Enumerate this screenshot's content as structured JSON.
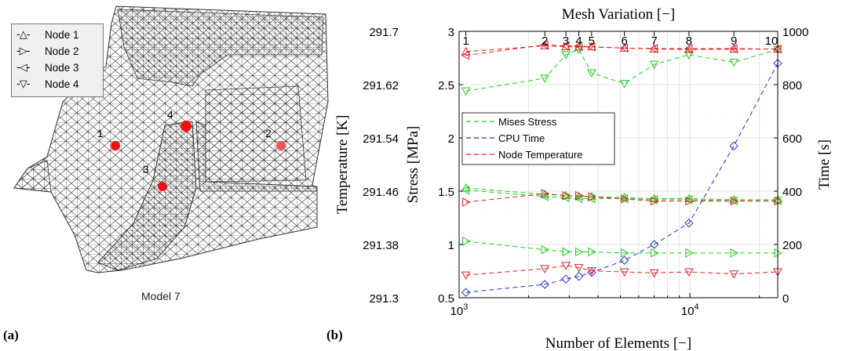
{
  "panel_a": {
    "label": "(a)",
    "caption": "Model 7",
    "legend": [
      {
        "marker": "-△-",
        "label": "Node 1"
      },
      {
        "marker": "-▷-",
        "label": "Node 2"
      },
      {
        "marker": "-◁-",
        "label": "Node 3"
      },
      {
        "marker": "-▽-",
        "label": "Node 4"
      }
    ],
    "node_labels": [
      "1",
      "2",
      "3",
      "4"
    ]
  },
  "panel_b": {
    "label": "(b)"
  },
  "chart_data": {
    "type": "line",
    "title": "Mesh Variation [−]",
    "xlabel": "Number of Elements [−]",
    "xscale": "log",
    "xlim": [
      1000,
      24000
    ],
    "x_tick_labels": [
      "10^3",
      "10^4"
    ],
    "top_tick_labels": [
      "1",
      "2",
      "3",
      "4",
      "5",
      "6",
      "7",
      "8",
      "9",
      "10"
    ],
    "ylabel_stress": "Stress [MPa]",
    "ylim_stress": [
      0.5,
      3
    ],
    "stress_ticks": [
      "0.5",
      "1",
      "1.5",
      "2",
      "2.5",
      "3"
    ],
    "ylabel_temperature": "Temperature [K]",
    "ylim_temperature": [
      291.3,
      291.7
    ],
    "temperature_ticks": [
      "291.3",
      "291.38",
      "291.46",
      "291.54",
      "291.62",
      "291.7"
    ],
    "ylabel_time": "Time [s]",
    "ylim_time": [
      0,
      1000
    ],
    "time_ticks": [
      "0",
      "200",
      "400",
      "600",
      "800",
      "1000"
    ],
    "grid": true,
    "legend_position": "middle-left",
    "legend": [
      {
        "label": "Mises Stress",
        "color": "#22cc22"
      },
      {
        "label": "CPU Time",
        "color": "#2233cc"
      },
      {
        "label": "Node Temperature",
        "color": "#dd2222"
      }
    ],
    "x": [
      1070,
      2350,
      2900,
      3300,
      3750,
      5200,
      7000,
      9900,
      15500,
      24000
    ],
    "series": [
      {
        "name": "Mises Stress",
        "color": "#22cc22",
        "axis": "stress",
        "marker": "triangle-up",
        "values": [
          1.53,
          1.47,
          1.46,
          1.45,
          1.45,
          1.44,
          1.43,
          1.43,
          1.42,
          1.42
        ]
      },
      {
        "name": "Mises Stress",
        "color": "#22cc22",
        "axis": "stress",
        "marker": "triangle-right",
        "values": [
          1.03,
          0.95,
          0.93,
          0.93,
          0.93,
          0.92,
          0.92,
          0.92,
          0.92,
          0.92
        ]
      },
      {
        "name": "Mises Stress",
        "color": "#22cc22",
        "axis": "stress",
        "marker": "triangle-left",
        "values": [
          1.51,
          1.45,
          1.44,
          1.43,
          1.43,
          1.43,
          1.42,
          1.42,
          1.41,
          1.41
        ]
      },
      {
        "name": "Mises Stress",
        "color": "#22cc22",
        "axis": "stress",
        "marker": "triangle-down",
        "values": [
          2.44,
          2.56,
          2.78,
          2.83,
          2.61,
          2.51,
          2.69,
          2.78,
          2.71,
          2.83
        ]
      },
      {
        "name": "CPU Time",
        "color": "#2233cc",
        "axis": "time",
        "marker": "diamond",
        "values": [
          20,
          50,
          70,
          80,
          95,
          140,
          200,
          280,
          570,
          880
        ]
      },
      {
        "name": "Node Temperature",
        "color": "#dd2222",
        "axis": "temperature",
        "marker": "triangle-up",
        "values": [
          291.6695,
          291.6784,
          291.6769,
          291.6765,
          291.6769,
          291.6749,
          291.6736,
          291.6727,
          291.6732,
          291.6736
        ]
      },
      {
        "name": "Node Temperature",
        "color": "#dd2222",
        "axis": "temperature",
        "marker": "triangle-right",
        "values": [
          291.4435,
          291.4563,
          291.4531,
          291.4531,
          291.4515,
          291.4483,
          291.4451,
          291.4451,
          291.4451,
          291.4451
        ]
      },
      {
        "name": "Node Temperature",
        "color": "#dd2222",
        "axis": "temperature",
        "marker": "triangle-left",
        "values": [
          291.6639,
          291.6797,
          291.6781,
          291.6781,
          291.6765,
          291.6749,
          291.6741,
          291.6741,
          291.6741,
          291.6733
        ]
      },
      {
        "name": "Node Temperature",
        "color": "#dd2222",
        "axis": "temperature",
        "marker": "triangle-down",
        "values": [
          291.334,
          291.3436,
          291.3484,
          291.3452,
          291.3404,
          291.3388,
          291.3372,
          291.3388,
          291.3356,
          291.3388
        ]
      }
    ]
  }
}
